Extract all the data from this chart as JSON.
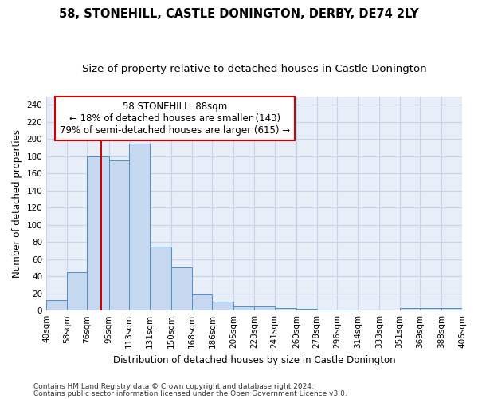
{
  "title1": "58, STONEHILL, CASTLE DONINGTON, DERBY, DE74 2LY",
  "title2": "Size of property relative to detached houses in Castle Donington",
  "xlabel": "Distribution of detached houses by size in Castle Donington",
  "ylabel": "Number of detached properties",
  "footnote1": "Contains HM Land Registry data © Crown copyright and database right 2024.",
  "footnote2": "Contains public sector information licensed under the Open Government Licence v3.0.",
  "annotation_line1": "58 STONEHILL: 88sqm",
  "annotation_line2": "← 18% of detached houses are smaller (143)",
  "annotation_line3": "79% of semi-detached houses are larger (615) →",
  "bin_edges": [
    40,
    58,
    76,
    95,
    113,
    131,
    150,
    168,
    186,
    205,
    223,
    241,
    260,
    278,
    296,
    314,
    333,
    351,
    369,
    388,
    406
  ],
  "bin_labels": [
    "40sqm",
    "58sqm",
    "76sqm",
    "95sqm",
    "113sqm",
    "131sqm",
    "150sqm",
    "168sqm",
    "186sqm",
    "205sqm",
    "223sqm",
    "241sqm",
    "260sqm",
    "278sqm",
    "296sqm",
    "314sqm",
    "333sqm",
    "351sqm",
    "369sqm",
    "388sqm",
    "406sqm"
  ],
  "bar_values": [
    12,
    45,
    180,
    175,
    195,
    75,
    50,
    19,
    10,
    5,
    5,
    3,
    2,
    1,
    1,
    0,
    0,
    3,
    3,
    3
  ],
  "bar_color": "#c5d8f0",
  "bar_edge_color": "#4f90c8",
  "vline_color": "#cc0000",
  "vline_x": 88,
  "ylim": [
    0,
    250
  ],
  "yticks": [
    0,
    20,
    40,
    60,
    80,
    100,
    120,
    140,
    160,
    180,
    200,
    220,
    240
  ],
  "grid_color": "#c8d4e8",
  "bg_color": "#e8eef8",
  "annotation_box_color": "#cc0000",
  "title1_fontsize": 10.5,
  "title2_fontsize": 9.5,
  "xlabel_fontsize": 8.5,
  "ylabel_fontsize": 8.5,
  "annotation_fontsize": 8.5,
  "tick_fontsize": 7.5,
  "footnote_fontsize": 6.5
}
